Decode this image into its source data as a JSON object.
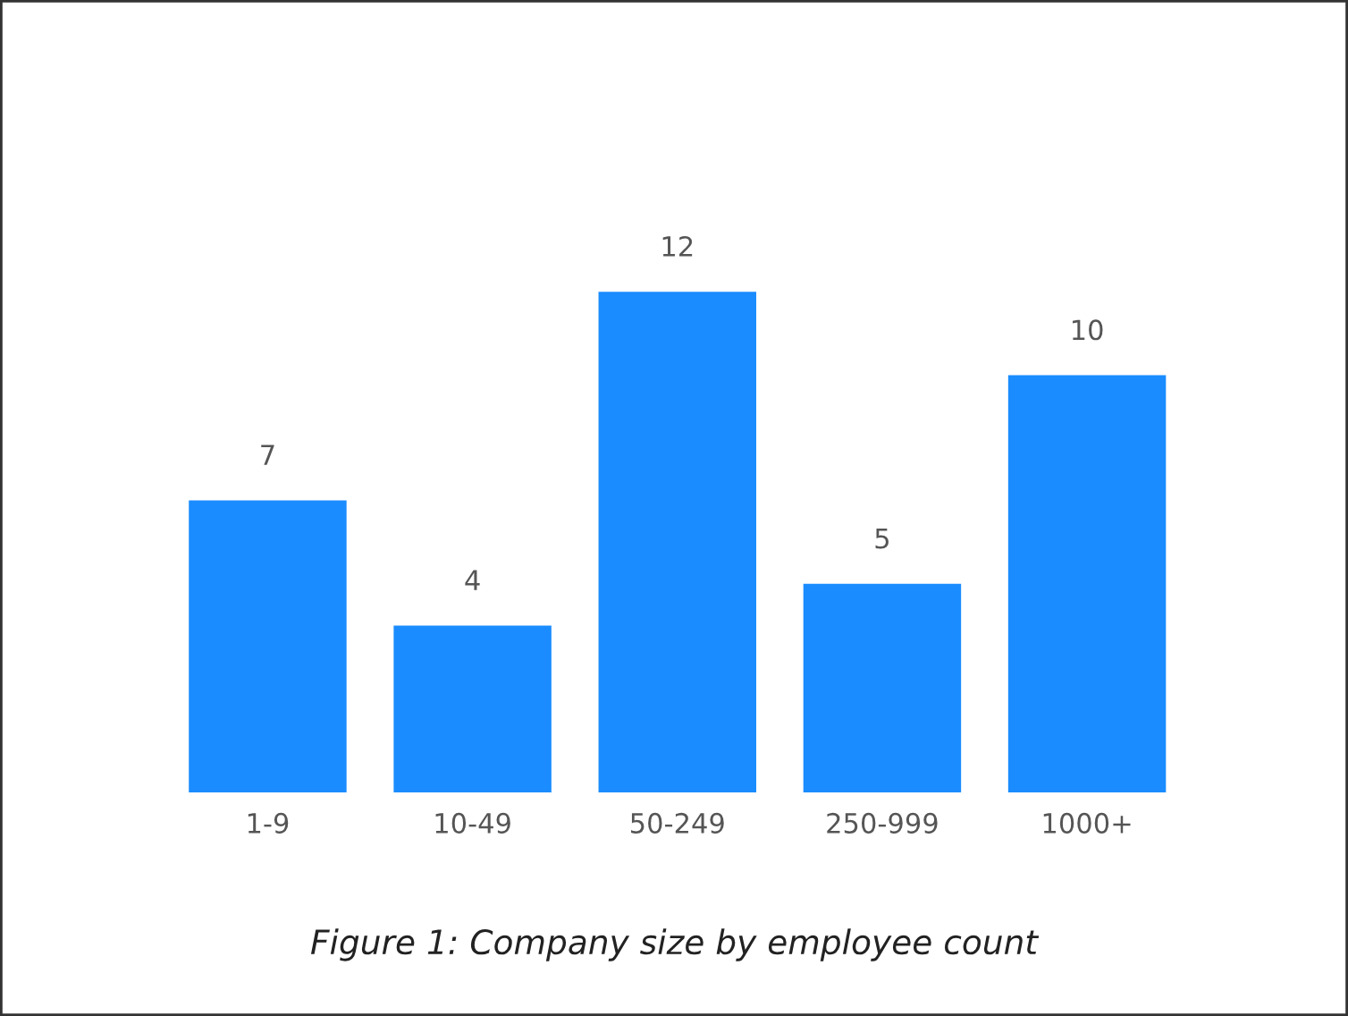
{
  "chart_data": {
    "type": "bar",
    "categories": [
      "1-9",
      "10-49",
      "50-249",
      "250-999",
      "1000+"
    ],
    "values": [
      7,
      4,
      12,
      5,
      10
    ],
    "color": "#1a8cff",
    "data_labels": true,
    "grid": false,
    "legend": false,
    "annotations": [
      "Figure 1: Company size by employee count"
    ]
  }
}
